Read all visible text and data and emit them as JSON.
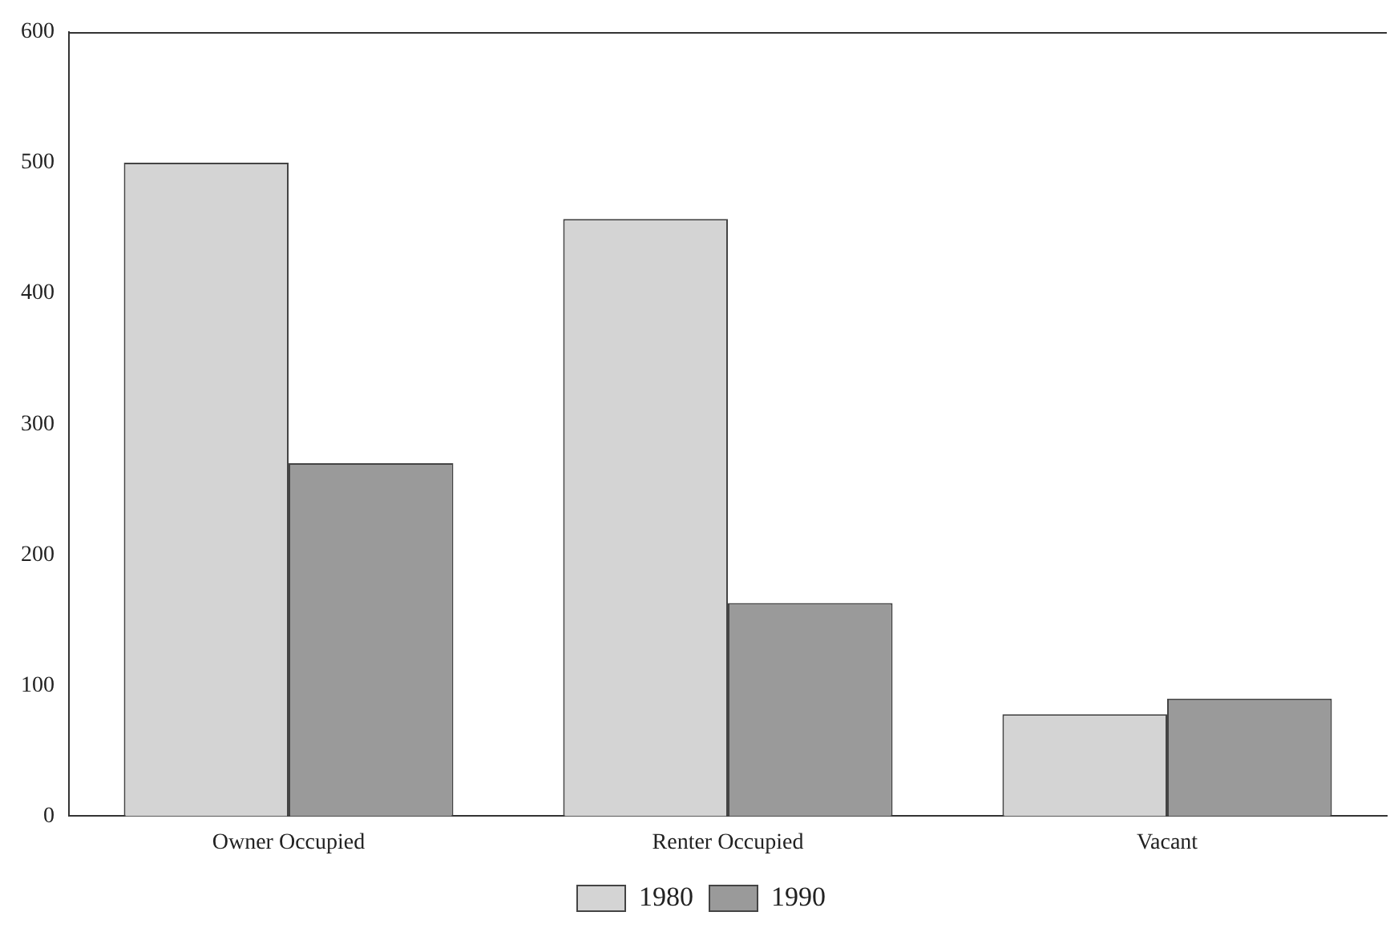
{
  "chart_data": {
    "type": "bar",
    "categories": [
      "Owner Occupied",
      "Renter Occupied",
      "Vacant"
    ],
    "series": [
      {
        "name": "1980",
        "color": "#d4d4d4",
        "values": [
          500,
          457,
          78
        ]
      },
      {
        "name": "1990",
        "color": "#9a9a9a",
        "values": [
          270,
          163,
          90
        ]
      }
    ],
    "ylim": [
      0,
      600
    ],
    "yticks": [
      0,
      100,
      200,
      300,
      400,
      500,
      600
    ],
    "grid": false,
    "legend": "bottom"
  }
}
